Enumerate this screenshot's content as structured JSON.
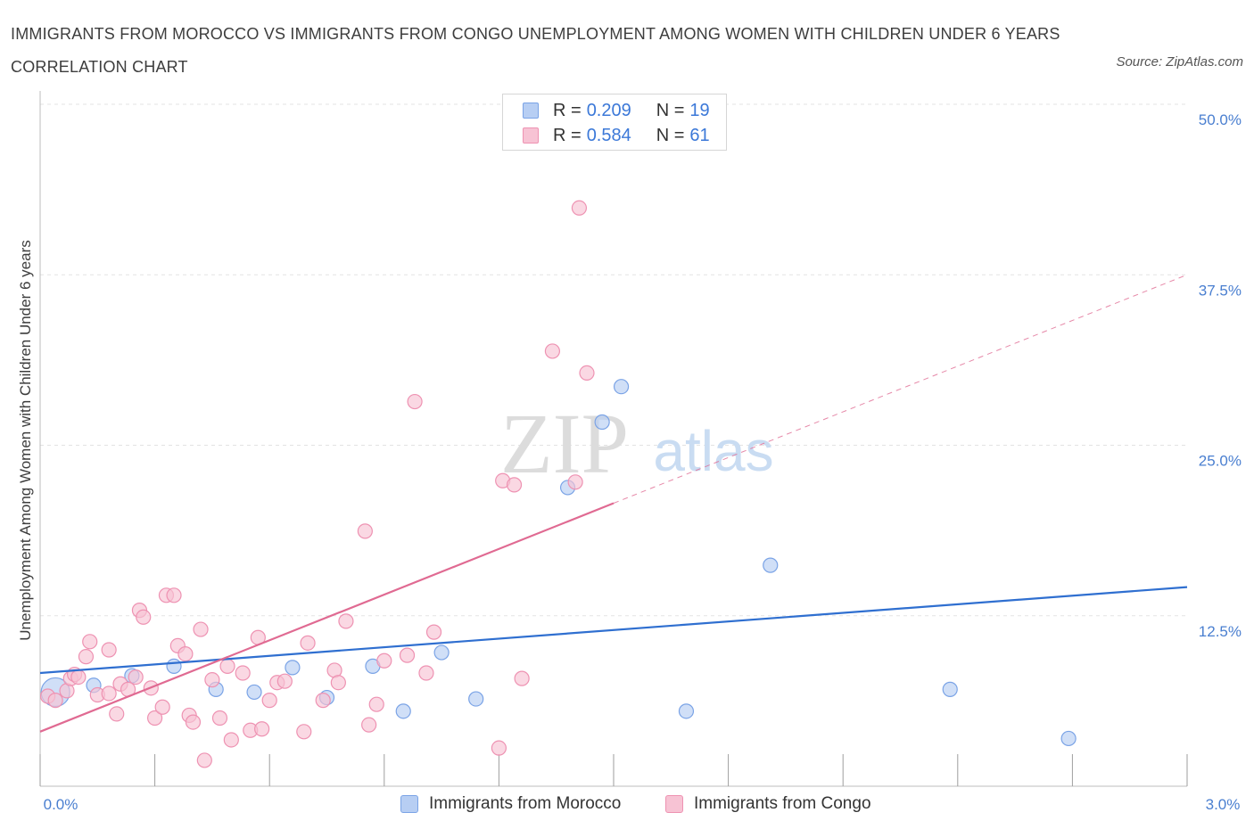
{
  "title": "IMMIGRANTS FROM MOROCCO VS IMMIGRANTS FROM CONGO UNEMPLOYMENT AMONG WOMEN WITH CHILDREN UNDER 6 YEARS CORRELATION CHART",
  "source": "Source: ZipAtlas.com",
  "watermark": {
    "zip": "ZIP",
    "atlas": "atlas"
  },
  "colors": {
    "morocco_fill": "#b7cef3",
    "morocco_stroke": "#7aa3e6",
    "morocco_line": "#2f6fd0",
    "congo_fill": "#f7c3d4",
    "congo_stroke": "#ee92b2",
    "congo_line": "#e06a92",
    "axis_label": "#4a7fd0",
    "grid": "#e3e3e3"
  },
  "legend": {
    "rows": [
      {
        "r_label": "R =",
        "r_value": "0.209",
        "n_label": "N =",
        "n_value": "19"
      },
      {
        "r_label": "R =",
        "r_value": "0.584",
        "n_label": "N =",
        "n_value": "61"
      }
    ]
  },
  "chart_data": {
    "type": "scatter",
    "title": "IMMIGRANTS FROM MOROCCO VS IMMIGRANTS FROM CONGO UNEMPLOYMENT AMONG WOMEN WITH CHILDREN UNDER 6 YEARS CORRELATION CHART",
    "xlabel": "",
    "ylabel": "Unemployment Among Women with Children Under 6 years",
    "xlim": [
      0,
      3.0
    ],
    "ylim": [
      0,
      50
    ],
    "x_tick_labels": {
      "min": "0.0%",
      "max": "3.0%"
    },
    "y_ticks": [
      {
        "value": 12.5,
        "label": "12.5%"
      },
      {
        "value": 25.0,
        "label": "25.0%"
      },
      {
        "value": 37.5,
        "label": "37.5%"
      },
      {
        "value": 50.0,
        "label": "50.0%"
      }
    ],
    "grid": true,
    "legend_position": "top-center",
    "series": [
      {
        "name": "Immigrants from Morocco",
        "r": 0.209,
        "n": 19,
        "trend": {
          "x": [
            0.0,
            3.0
          ],
          "y": [
            8.3,
            14.6
          ],
          "dashed_from": null
        },
        "points": [
          {
            "x": 0.04,
            "y": 6.9,
            "big": true
          },
          {
            "x": 0.14,
            "y": 7.4
          },
          {
            "x": 0.24,
            "y": 8.1
          },
          {
            "x": 0.35,
            "y": 8.8
          },
          {
            "x": 0.46,
            "y": 7.1
          },
          {
            "x": 0.56,
            "y": 6.9
          },
          {
            "x": 0.66,
            "y": 8.7
          },
          {
            "x": 0.75,
            "y": 6.5
          },
          {
            "x": 0.87,
            "y": 8.8
          },
          {
            "x": 0.95,
            "y": 5.5
          },
          {
            "x": 1.05,
            "y": 9.8
          },
          {
            "x": 1.14,
            "y": 6.4
          },
          {
            "x": 1.38,
            "y": 21.9
          },
          {
            "x": 1.47,
            "y": 26.7
          },
          {
            "x": 1.52,
            "y": 29.3
          },
          {
            "x": 1.69,
            "y": 5.5
          },
          {
            "x": 1.91,
            "y": 16.2
          },
          {
            "x": 2.38,
            "y": 7.1
          },
          {
            "x": 2.69,
            "y": 3.5
          }
        ]
      },
      {
        "name": "Immigrants from Congo",
        "r": 0.584,
        "n": 61,
        "trend": {
          "x": [
            0.0,
            3.0
          ],
          "y": [
            4.0,
            37.5
          ],
          "dashed_from": 1.5
        },
        "points": [
          {
            "x": 0.02,
            "y": 6.6
          },
          {
            "x": 0.04,
            "y": 6.3
          },
          {
            "x": 0.07,
            "y": 7.0
          },
          {
            "x": 0.08,
            "y": 7.9
          },
          {
            "x": 0.09,
            "y": 8.2
          },
          {
            "x": 0.12,
            "y": 9.5
          },
          {
            "x": 0.13,
            "y": 10.6
          },
          {
            "x": 0.15,
            "y": 6.7
          },
          {
            "x": 0.18,
            "y": 6.8
          },
          {
            "x": 0.18,
            "y": 10.0
          },
          {
            "x": 0.2,
            "y": 5.3
          },
          {
            "x": 0.21,
            "y": 7.5
          },
          {
            "x": 0.23,
            "y": 7.1
          },
          {
            "x": 0.25,
            "y": 8.0
          },
          {
            "x": 0.26,
            "y": 12.9
          },
          {
            "x": 0.27,
            "y": 12.4
          },
          {
            "x": 0.29,
            "y": 7.2
          },
          {
            "x": 0.3,
            "y": 5.0
          },
          {
            "x": 0.32,
            "y": 5.8
          },
          {
            "x": 0.33,
            "y": 14.0
          },
          {
            "x": 0.35,
            "y": 14.0
          },
          {
            "x": 0.36,
            "y": 10.3
          },
          {
            "x": 0.38,
            "y": 9.7
          },
          {
            "x": 0.39,
            "y": 5.2
          },
          {
            "x": 0.4,
            "y": 4.7
          },
          {
            "x": 0.42,
            "y": 11.5
          },
          {
            "x": 0.43,
            "y": 1.9
          },
          {
            "x": 0.45,
            "y": 7.8
          },
          {
            "x": 0.47,
            "y": 5.0
          },
          {
            "x": 0.49,
            "y": 8.8
          },
          {
            "x": 0.5,
            "y": 3.4
          },
          {
            "x": 0.53,
            "y": 8.3
          },
          {
            "x": 0.55,
            "y": 4.1
          },
          {
            "x": 0.57,
            "y": 10.9
          },
          {
            "x": 0.58,
            "y": 4.2
          },
          {
            "x": 0.6,
            "y": 6.3
          },
          {
            "x": 0.62,
            "y": 7.6
          },
          {
            "x": 0.64,
            "y": 7.7
          },
          {
            "x": 0.69,
            "y": 4.0
          },
          {
            "x": 0.7,
            "y": 10.5
          },
          {
            "x": 0.74,
            "y": 6.3
          },
          {
            "x": 0.77,
            "y": 8.5
          },
          {
            "x": 0.78,
            "y": 7.6
          },
          {
            "x": 0.8,
            "y": 12.1
          },
          {
            "x": 0.85,
            "y": 18.7
          },
          {
            "x": 0.86,
            "y": 4.5
          },
          {
            "x": 0.88,
            "y": 6.0
          },
          {
            "x": 0.9,
            "y": 9.2
          },
          {
            "x": 0.96,
            "y": 9.6
          },
          {
            "x": 0.98,
            "y": 28.2
          },
          {
            "x": 1.01,
            "y": 8.3
          },
          {
            "x": 1.03,
            "y": 11.3
          },
          {
            "x": 1.2,
            "y": 2.8
          },
          {
            "x": 1.21,
            "y": 22.4
          },
          {
            "x": 1.24,
            "y": 22.1
          },
          {
            "x": 1.26,
            "y": 7.9
          },
          {
            "x": 1.34,
            "y": 31.9
          },
          {
            "x": 1.4,
            "y": 22.3
          },
          {
            "x": 1.41,
            "y": 42.4
          },
          {
            "x": 1.43,
            "y": 30.3
          },
          {
            "x": 0.1,
            "y": 8.0
          }
        ]
      }
    ]
  }
}
